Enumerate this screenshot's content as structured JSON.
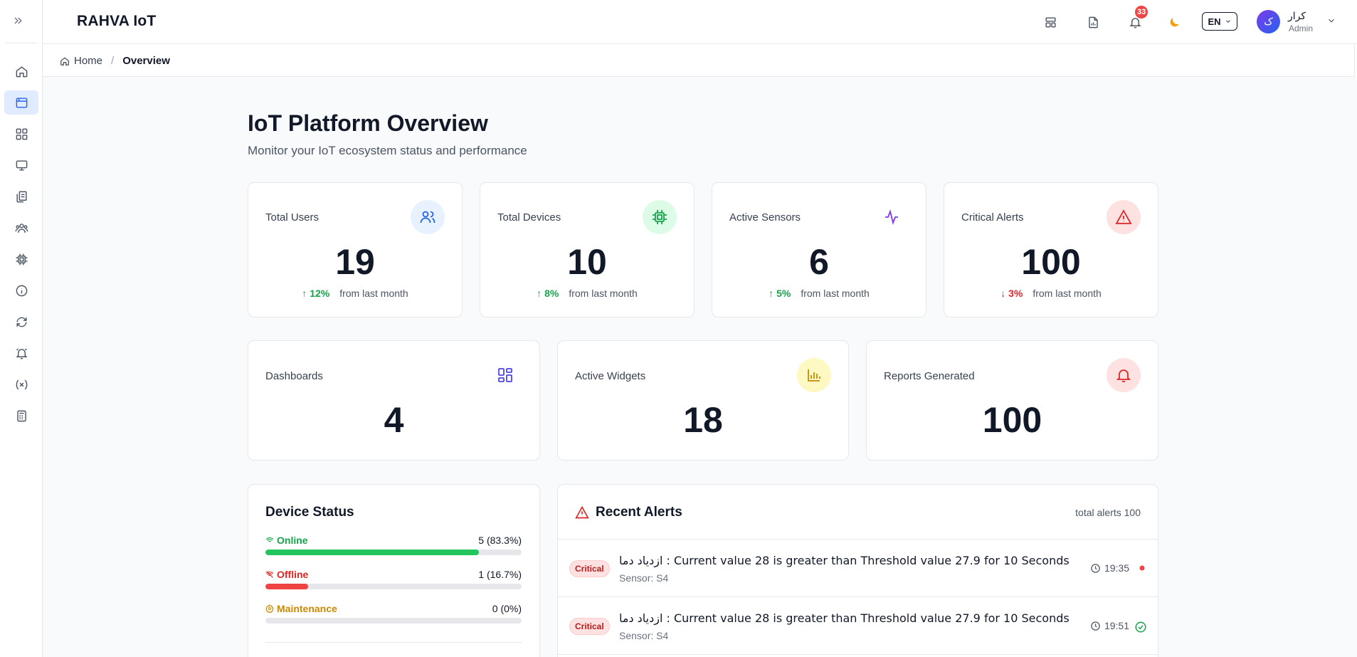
{
  "app": {
    "brand": "RAHVA IoT"
  },
  "header": {
    "notifications_count": "33",
    "language": "EN",
    "user": {
      "avatar_initial": "ک",
      "name": "کرار",
      "role": "Admin"
    }
  },
  "breadcrumb": {
    "home": "Home",
    "separator": "/",
    "current": "Overview"
  },
  "page": {
    "title": "IoT Platform Overview",
    "subtitle": "Monitor your IoT ecosystem status and performance"
  },
  "stats": {
    "users": {
      "label": "Total Users",
      "value": "19",
      "trend": "12%",
      "trend_dir": "up",
      "suffix": "from last month"
    },
    "devices": {
      "label": "Total Devices",
      "value": "10",
      "trend": "8%",
      "trend_dir": "up",
      "suffix": "from last month"
    },
    "sensors": {
      "label": "Active Sensors",
      "value": "6",
      "trend": "5%",
      "trend_dir": "up",
      "suffix": "from last month"
    },
    "alerts": {
      "label": "Critical Alerts",
      "value": "100",
      "trend": "3%",
      "trend_dir": "down",
      "suffix": "from last month"
    },
    "dashboards": {
      "label": "Dashboards",
      "value": "4"
    },
    "widgets": {
      "label": "Active Widgets",
      "value": "18"
    },
    "reports": {
      "label": "Reports Generated",
      "value": "100"
    }
  },
  "device_status": {
    "title": "Device Status",
    "rows": [
      {
        "label": "Online",
        "value": "5 (83.3%)",
        "fraction": 0.833,
        "color": "#22c55e",
        "text_color": "#16a34a"
      },
      {
        "label": "Offline",
        "value": "1 (16.7%)",
        "fraction": 0.167,
        "color": "#ef4444",
        "text_color": "#dc2626"
      },
      {
        "label": "Maintenance",
        "value": "0 (0%)",
        "fraction": 0,
        "color": "#eab308",
        "text_color": "#ca8a04"
      }
    ]
  },
  "recent_alerts": {
    "title": "Recent Alerts",
    "total": "total alerts 100",
    "items": [
      {
        "severity": "Critical",
        "message": "ازدیاد دما : Current value 28 is greater than Threshold value 27.9 for 10 Seconds",
        "sensor": "Sensor: S4",
        "time": "19:35",
        "status": "active"
      },
      {
        "severity": "Critical",
        "message": "ازدیاد دما : Current value 28 is greater than Threshold value 27.9 for 10 Seconds",
        "sensor": "Sensor: S4",
        "time": "19:51",
        "status": "resolved"
      }
    ]
  },
  "colors": {
    "accent": "#2563eb",
    "success": "#16a34a",
    "danger": "#dc2626",
    "warning": "#ca8a04"
  }
}
